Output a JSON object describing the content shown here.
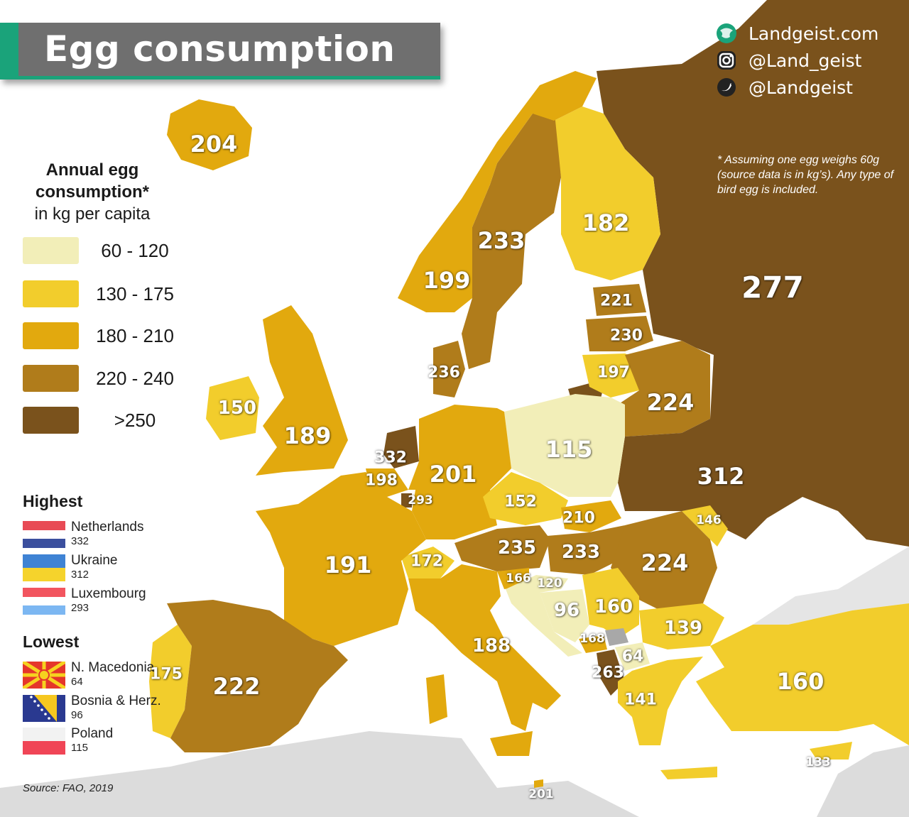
{
  "title": "Egg consumption",
  "social": [
    {
      "icon": "globe-icon",
      "text": "Landgeist.com"
    },
    {
      "icon": "instagram-icon",
      "text": "@Land_geist"
    },
    {
      "icon": "twitter-icon",
      "text": "@Landgeist"
    }
  ],
  "note": "* Assuming one egg weighs 60g (source data is in kg’s). Any type of bird egg is in­cluded.",
  "legend": {
    "title_bold": "Annual egg consumption*",
    "title_rest": "in kg per capita",
    "classes": [
      {
        "label": "60  - 120",
        "color": "#f2eeb8"
      },
      {
        "label": "130 - 175",
        "color": "#f2cd2c"
      },
      {
        "label": "180 - 210",
        "color": "#e2a90e"
      },
      {
        "label": "220 - 240",
        "color": "#b07c1b"
      },
      {
        "label": ">250",
        "color": "#7a521c"
      }
    ]
  },
  "highest": {
    "heading": "Highest",
    "items": [
      {
        "name": "Netherlands",
        "value": "332"
      },
      {
        "name": "Ukraine",
        "value": "312"
      },
      {
        "name": "Luxembourg",
        "value": "293"
      }
    ]
  },
  "lowest": {
    "heading": "Lowest",
    "items": [
      {
        "name": "N. Macedonia",
        "value": "64"
      },
      {
        "name": "Bosnia & Herz.",
        "value": "96"
      },
      {
        "name": "Poland",
        "value": "115"
      }
    ]
  },
  "source": "Source: FAO, 2019",
  "map_values": [
    {
      "label": "204",
      "size": "big"
    },
    {
      "label": "233",
      "size": "big"
    },
    {
      "label": "182",
      "size": "big"
    },
    {
      "label": "199",
      "size": "big"
    },
    {
      "label": "277",
      "size": "huge"
    },
    {
      "label": "221",
      "size": "small"
    },
    {
      "label": "230",
      "size": "small"
    },
    {
      "label": "197",
      "size": "small"
    },
    {
      "label": "236",
      "size": "small"
    },
    {
      "label": "224",
      "size": "big"
    },
    {
      "label": "150",
      "size": "mid"
    },
    {
      "label": "189",
      "size": "big"
    },
    {
      "label": "115",
      "size": "big"
    },
    {
      "label": "332",
      "size": "small"
    },
    {
      "label": "201",
      "size": "big"
    },
    {
      "label": "198",
      "size": "small"
    },
    {
      "label": "293",
      "size": "tiny"
    },
    {
      "label": "312",
      "size": "big"
    },
    {
      "label": "152",
      "size": "small"
    },
    {
      "label": "210",
      "size": "small"
    },
    {
      "label": "146",
      "size": "tiny"
    },
    {
      "label": "235",
      "size": "mid"
    },
    {
      "label": "233",
      "size": "mid"
    },
    {
      "label": "224",
      "size": "big"
    },
    {
      "label": "191",
      "size": "big"
    },
    {
      "label": "172",
      "size": "small"
    },
    {
      "label": "166",
      "size": "tiny"
    },
    {
      "label": "120",
      "size": "tiny"
    },
    {
      "label": "96",
      "size": "mid"
    },
    {
      "label": "160",
      "size": "mid"
    },
    {
      "label": "139",
      "size": "mid"
    },
    {
      "label": "188",
      "size": "mid"
    },
    {
      "label": "168",
      "size": "tiny"
    },
    {
      "label": "64",
      "size": "small"
    },
    {
      "label": "263",
      "size": "small"
    },
    {
      "label": "141",
      "size": "small"
    },
    {
      "label": "160",
      "size": "big"
    },
    {
      "label": "175",
      "size": "small"
    },
    {
      "label": "222",
      "size": "big"
    },
    {
      "label": "133",
      "size": "tiny"
    },
    {
      "label": "201",
      "size": "tiny"
    }
  ]
}
